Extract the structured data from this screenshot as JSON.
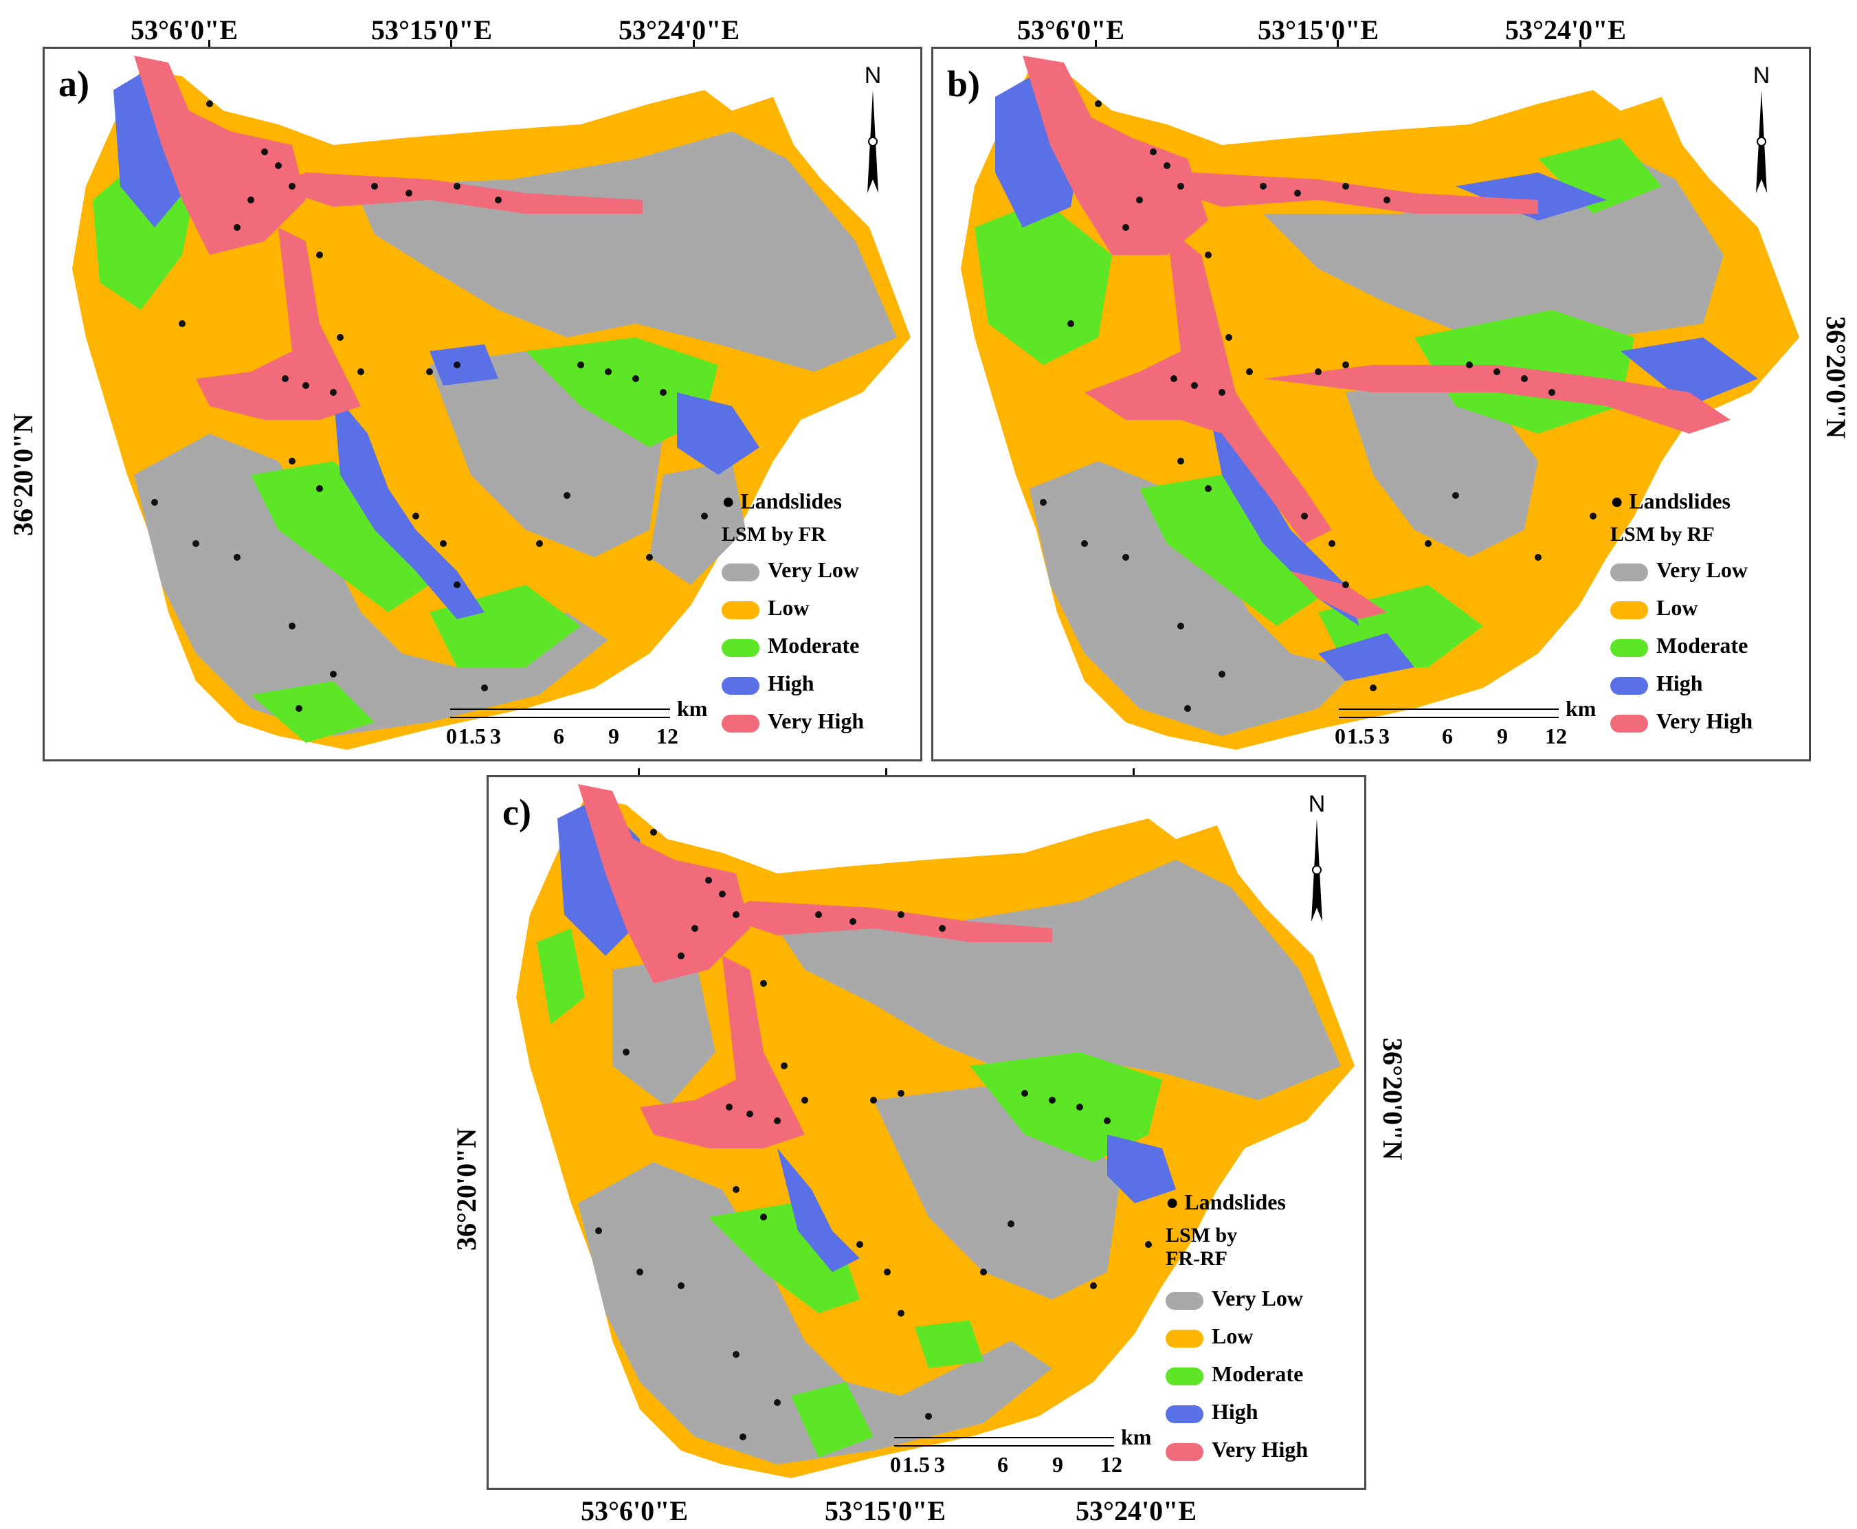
{
  "panels": [
    {
      "id": "a",
      "label": "a)",
      "legend_title": "LSM by FR"
    },
    {
      "id": "b",
      "label": "b)",
      "legend_title": "LSM by RF"
    },
    {
      "id": "c",
      "label": "c)",
      "legend_title": "LSM by FR-RF"
    }
  ],
  "legend": {
    "points_label": "Landslides",
    "classes": [
      {
        "name": "Very Low",
        "color": "#a9a9a9"
      },
      {
        "name": "Low",
        "color": "#ffb400"
      },
      {
        "name": "Moderate",
        "color": "#5ce625"
      },
      {
        "name": "High",
        "color": "#5a70e6"
      },
      {
        "name": "Very High",
        "color": "#f26b7a"
      }
    ]
  },
  "north_arrow": "N",
  "scale_bar": {
    "unit": "km",
    "labels": [
      "0",
      "1.5",
      "3",
      "6",
      "9",
      "12"
    ]
  },
  "graticule": {
    "longitudes": [
      "53°6'0\"E",
      "53°15'0\"E",
      "53°24'0\"E"
    ],
    "latitude": "36°20'0\"N"
  }
}
